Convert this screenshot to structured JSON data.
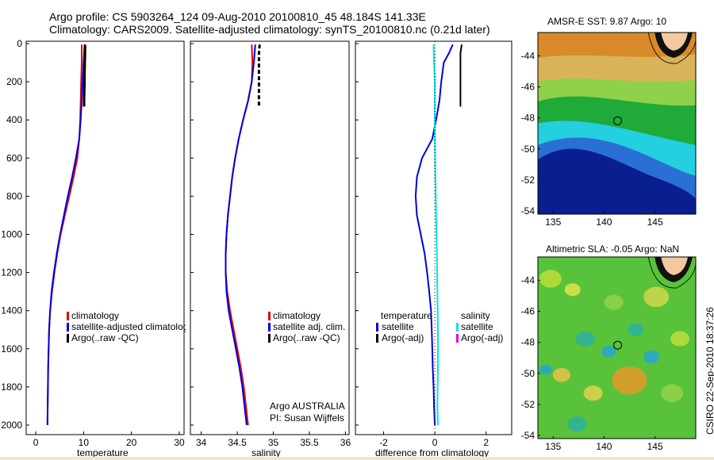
{
  "header": {
    "title_line1": "Argo profile: CS 5903264_124 09-Aug-2010 20100810_45 48.184S 141.33E",
    "title_line2": "Climatology: CARS2009. Satellite-adjusted climatology: synTS_20100810.nc (0.21d later)"
  },
  "colors": {
    "climatology": "#e00000",
    "satellite": "#0000e0",
    "argo": "#000000",
    "satellite_salinity": "#00e5e5",
    "argo_adj_salinity": "#e000e0"
  },
  "chart_data": [
    {
      "type": "line",
      "xlabel": "temperature",
      "xlim": [
        -2,
        31
      ],
      "xticks": [
        0,
        10,
        20,
        30
      ],
      "ylim": [
        2050,
        0
      ],
      "yticks": [
        0,
        200,
        400,
        600,
        800,
        1000,
        1200,
        1400,
        1600,
        1800,
        2000
      ],
      "legend": {
        "placement": "lower-middle",
        "entries": [
          "climatology",
          "satellite-adjusted climatology",
          "Argo(..raw -QC)"
        ]
      },
      "series": [
        {
          "name": "climatology",
          "points": [
            [
              9.6,
              5
            ],
            [
              9.6,
              50
            ],
            [
              9.6,
              100
            ],
            [
              9.5,
              200
            ],
            [
              9.4,
              300
            ],
            [
              9.3,
              400
            ],
            [
              9.1,
              500
            ],
            [
              8.7,
              600
            ],
            [
              7.9,
              700
            ],
            [
              7.0,
              800
            ],
            [
              6.1,
              900
            ],
            [
              5.2,
              1000
            ],
            [
              4.5,
              1100
            ],
            [
              3.9,
              1200
            ],
            [
              3.4,
              1300
            ],
            [
              3.0,
              1400
            ],
            [
              2.8,
              1500
            ],
            [
              2.7,
              1600
            ],
            [
              2.6,
              1700
            ],
            [
              2.55,
              1800
            ],
            [
              2.5,
              1900
            ],
            [
              2.45,
              2000
            ]
          ]
        },
        {
          "name": "satellite-adjusted climatology",
          "points": [
            [
              10.2,
              5
            ],
            [
              10.1,
              50
            ],
            [
              10.0,
              100
            ],
            [
              9.8,
              200
            ],
            [
              9.6,
              300
            ],
            [
              9.4,
              400
            ],
            [
              9.1,
              500
            ],
            [
              8.4,
              600
            ],
            [
              7.6,
              700
            ],
            [
              6.7,
              800
            ],
            [
              5.9,
              900
            ],
            [
              5.1,
              1000
            ],
            [
              4.4,
              1100
            ],
            [
              3.8,
              1200
            ],
            [
              3.3,
              1300
            ],
            [
              3.0,
              1400
            ],
            [
              2.8,
              1500
            ],
            [
              2.7,
              1600
            ],
            [
              2.6,
              1700
            ],
            [
              2.55,
              1800
            ],
            [
              2.5,
              1900
            ],
            [
              2.45,
              2000
            ]
          ]
        },
        {
          "name": "Argo(..raw -QC)",
          "points": [
            [
              10.3,
              5
            ],
            [
              10.3,
              50
            ],
            [
              10.25,
              100
            ],
            [
              10.2,
              150
            ],
            [
              10.2,
              200
            ],
            [
              10.15,
              250
            ],
            [
              10.1,
              300
            ],
            [
              10.1,
              330
            ]
          ]
        }
      ]
    },
    {
      "type": "line",
      "xlabel": "salinity",
      "xlim": [
        33.85,
        36.05
      ],
      "xticks": [
        34,
        34.5,
        35,
        35.5,
        36
      ],
      "ylim": [
        2050,
        0
      ],
      "legend": {
        "placement": "lower-middle",
        "entries": [
          "climatology",
          "satellite adj. clim.",
          "Argo(..raw -QC)"
        ]
      },
      "annotation": [
        "Argo AUSTRALIA",
        "PI: Susan Wijffels"
      ],
      "series": [
        {
          "name": "climatology",
          "points": [
            [
              34.7,
              5
            ],
            [
              34.71,
              100
            ],
            [
              34.7,
              200
            ],
            [
              34.65,
              300
            ],
            [
              34.58,
              400
            ],
            [
              34.52,
              500
            ],
            [
              34.47,
              600
            ],
            [
              34.43,
              700
            ],
            [
              34.4,
              800
            ],
            [
              34.37,
              900
            ],
            [
              34.35,
              1000
            ],
            [
              34.34,
              1100
            ],
            [
              34.34,
              1200
            ],
            [
              34.36,
              1300
            ],
            [
              34.4,
              1400
            ],
            [
              34.45,
              1500
            ],
            [
              34.5,
              1600
            ],
            [
              34.55,
              1700
            ],
            [
              34.59,
              1800
            ],
            [
              34.62,
              1900
            ],
            [
              34.65,
              2000
            ]
          ]
        },
        {
          "name": "satellite adj. clim.",
          "points": [
            [
              34.75,
              5
            ],
            [
              34.73,
              100
            ],
            [
              34.7,
              200
            ],
            [
              34.65,
              300
            ],
            [
              34.58,
              400
            ],
            [
              34.52,
              500
            ],
            [
              34.47,
              600
            ],
            [
              34.43,
              700
            ],
            [
              34.4,
              800
            ],
            [
              34.37,
              900
            ],
            [
              34.35,
              1000
            ],
            [
              34.34,
              1100
            ],
            [
              34.34,
              1200
            ],
            [
              34.35,
              1300
            ],
            [
              34.38,
              1400
            ],
            [
              34.43,
              1500
            ],
            [
              34.48,
              1600
            ],
            [
              34.53,
              1700
            ],
            [
              34.57,
              1800
            ],
            [
              34.6,
              1900
            ],
            [
              34.63,
              2000
            ]
          ]
        },
        {
          "name": "Argo(..raw -QC)",
          "points": [
            [
              34.81,
              5
            ],
            [
              34.8,
              50
            ],
            [
              34.8,
              100
            ],
            [
              34.8,
              150
            ],
            [
              34.8,
              200
            ],
            [
              34.8,
              250
            ],
            [
              34.8,
              300
            ],
            [
              34.8,
              330
            ]
          ]
        }
      ]
    },
    {
      "type": "line",
      "xlabel": "difference from climatology",
      "xlim": [
        -3.1,
        3.0
      ],
      "xticks": [
        -2,
        0,
        2
      ],
      "ylim": [
        2050,
        0
      ],
      "legend": {
        "placement": "lower-middle",
        "headers": [
          "temperature",
          "salinity"
        ],
        "entries": [
          "satellite",
          "Argo(-adj)",
          "satellite",
          "Argo(-adj)"
        ]
      },
      "series": [
        {
          "name": "satellite",
          "points": [
            [
              0.7,
              5
            ],
            [
              0.55,
              50
            ],
            [
              0.35,
              100
            ],
            [
              0.25,
              200
            ],
            [
              0.18,
              300
            ],
            [
              0.05,
              400
            ],
            [
              -0.1,
              500
            ],
            [
              -0.5,
              600
            ],
            [
              -0.7,
              700
            ],
            [
              -0.75,
              800
            ],
            [
              -0.7,
              900
            ],
            [
              -0.55,
              1000
            ],
            [
              -0.4,
              1100
            ],
            [
              -0.3,
              1200
            ],
            [
              -0.22,
              1300
            ],
            [
              -0.15,
              1400
            ],
            [
              -0.12,
              1500
            ],
            [
              -0.1,
              1600
            ],
            [
              -0.08,
              1700
            ],
            [
              -0.05,
              1800
            ],
            [
              -0.03,
              1900
            ],
            [
              0.0,
              2000
            ]
          ]
        },
        {
          "name": "satellite",
          "points": [
            [
              -0.05,
              5
            ],
            [
              -0.03,
              100
            ],
            [
              0.0,
              200
            ],
            [
              0.0,
              300
            ],
            [
              0.0,
              400
            ],
            [
              0.0,
              500
            ],
            [
              0.02,
              700
            ],
            [
              0.05,
              900
            ],
            [
              0.08,
              1100
            ],
            [
              0.1,
              1300
            ],
            [
              0.12,
              1500
            ],
            [
              0.12,
              1700
            ],
            [
              0.1,
              1900
            ],
            [
              0.12,
              2000
            ]
          ]
        },
        {
          "name": "Argo(-adj)",
          "points": [
            [
              1.05,
              5
            ],
            [
              1.0,
              50
            ],
            [
              1.0,
              100
            ],
            [
              1.0,
              200
            ],
            [
              1.0,
              300
            ],
            [
              1.0,
              330
            ]
          ]
        }
      ]
    }
  ],
  "sst_map": {
    "title": "AMSR-E SST: 9.87 Argo: 10",
    "xticks": [
      "135",
      "140",
      "145"
    ],
    "yticks": [
      "-44",
      "-46",
      "-48",
      "-50",
      "-52",
      "-54"
    ]
  },
  "sla_map": {
    "title": "Altimetric SLA: -0.05 Argo: NaN",
    "xticks": [
      "135",
      "140",
      "145"
    ],
    "yticks": [
      "-44",
      "-46",
      "-48",
      "-50",
      "-52",
      "-54"
    ]
  },
  "footer": {
    "credit": "CSIRO 22-Sep-2010 18:37:26"
  }
}
